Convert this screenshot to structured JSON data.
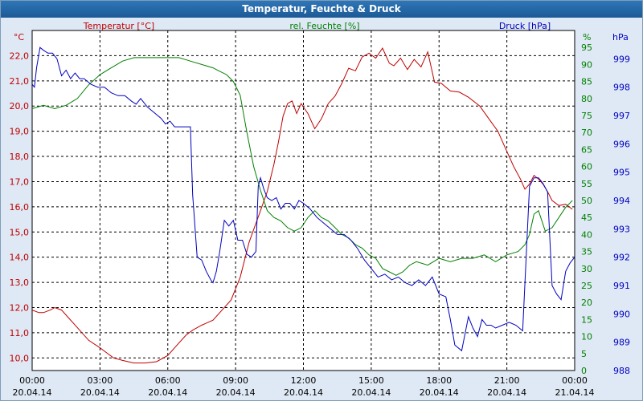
{
  "window": {
    "title": "Temperatur, Feuchte & Druck"
  },
  "colors": {
    "temperature": "#c00000",
    "humidity": "#008000",
    "pressure": "#0000c0",
    "grid": "#000000",
    "plot_bg": "#ffffff"
  },
  "chart_data": {
    "type": "line",
    "title": "Temperatur, Feuchte & Druck",
    "grid": true,
    "x_ticks": [
      {
        "time": "00:00",
        "date": "20.04.14"
      },
      {
        "time": "03:00",
        "date": "20.04.14"
      },
      {
        "time": "06:00",
        "date": "20.04.14"
      },
      {
        "time": "09:00",
        "date": "20.04.14"
      },
      {
        "time": "12:00",
        "date": "20.04.14"
      },
      {
        "time": "15:00",
        "date": "20.04.14"
      },
      {
        "time": "18:00",
        "date": "20.04.14"
      },
      {
        "time": "21:00",
        "date": "20.04.14"
      },
      {
        "time": "00:00",
        "date": "21.04.14"
      }
    ],
    "x_unit_hours": [
      0,
      24
    ],
    "axes": {
      "temperature": {
        "label": "Temperatur [°C]",
        "unit": "°C",
        "range": [
          9.5,
          23.0
        ],
        "ticks": [
          "10,0",
          "11,0",
          "12,0",
          "13,0",
          "14,0",
          "15,0",
          "16,0",
          "17,0",
          "18,0",
          "19,0",
          "20,0",
          "21,0",
          "22,0"
        ],
        "tick_values": [
          10,
          11,
          12,
          13,
          14,
          15,
          16,
          17,
          18,
          19,
          20,
          21,
          22
        ]
      },
      "humidity": {
        "label": "rel. Feuchte [%]",
        "unit": "%",
        "range": [
          0,
          100
        ],
        "ticks": [
          "0",
          "5",
          "10",
          "15",
          "20",
          "25",
          "30",
          "35",
          "40",
          "45",
          "50",
          "55",
          "60",
          "65",
          "70",
          "75",
          "80",
          "85",
          "90",
          "95"
        ],
        "tick_values": [
          0,
          5,
          10,
          15,
          20,
          25,
          30,
          35,
          40,
          45,
          50,
          55,
          60,
          65,
          70,
          75,
          80,
          85,
          90,
          95
        ]
      },
      "pressure": {
        "label": "Druck [hPa]",
        "unit": "hPa",
        "range": [
          988,
          1000
        ],
        "ticks": [
          "988",
          "989",
          "990",
          "991",
          "992",
          "993",
          "994",
          "995",
          "996",
          "997",
          "998",
          "999"
        ],
        "tick_values": [
          988,
          989,
          990,
          991,
          992,
          993,
          994,
          995,
          996,
          997,
          998,
          999
        ]
      }
    },
    "series": [
      {
        "name": "Temperatur [°C]",
        "axis": "temperature",
        "x": [
          0,
          0.3,
          0.5,
          0.8,
          1.0,
          1.3,
          1.6,
          2.0,
          2.5,
          3.0,
          3.3,
          3.6,
          4.0,
          4.5,
          5.0,
          5.5,
          6.0,
          6.4,
          6.8,
          7.1,
          7.5,
          8.0,
          8.4,
          8.8,
          9.2,
          9.6,
          10.0,
          10.4,
          10.7,
          10.9,
          11.1,
          11.3,
          11.5,
          11.7,
          11.9,
          12.2,
          12.5,
          12.8,
          13.1,
          13.4,
          13.7,
          14.0,
          14.3,
          14.6,
          14.9,
          15.2,
          15.5,
          15.8,
          16.0,
          16.3,
          16.6,
          16.9,
          17.2,
          17.5,
          17.8,
          18.1,
          18.5,
          18.9,
          19.3,
          19.8,
          20.2,
          20.6,
          21.0,
          21.3,
          21.6,
          21.8,
          22.0,
          22.2,
          22.4,
          22.6,
          22.8,
          23.0,
          23.3,
          23.6,
          23.9
        ],
        "values": [
          11.9,
          11.8,
          11.8,
          11.9,
          12.0,
          11.9,
          11.6,
          11.2,
          10.7,
          10.4,
          10.2,
          10.0,
          9.9,
          9.8,
          9.8,
          9.85,
          10.1,
          10.5,
          10.9,
          11.1,
          11.3,
          11.5,
          11.9,
          12.3,
          13.2,
          14.6,
          15.6,
          16.6,
          17.7,
          18.6,
          19.6,
          20.1,
          20.2,
          19.7,
          20.1,
          19.7,
          19.1,
          19.5,
          20.1,
          20.4,
          20.9,
          21.5,
          21.4,
          21.95,
          22.1,
          21.9,
          22.3,
          21.7,
          21.6,
          21.9,
          21.45,
          21.85,
          21.55,
          22.15,
          20.95,
          20.9,
          20.6,
          20.55,
          20.35,
          20.0,
          19.5,
          19.0,
          18.2,
          17.6,
          17.1,
          16.7,
          16.9,
          17.25,
          17.1,
          16.9,
          16.6,
          16.25,
          16.05,
          16.1,
          15.9
        ]
      },
      {
        "name": "rel. Feuchte [%]",
        "axis": "humidity",
        "x": [
          0,
          0.5,
          1.0,
          1.5,
          2.0,
          2.5,
          3.0,
          3.5,
          4.0,
          4.5,
          5.0,
          5.5,
          6.0,
          6.5,
          7.0,
          7.5,
          8.0,
          8.3,
          8.6,
          8.9,
          9.2,
          9.5,
          9.8,
          10.1,
          10.4,
          10.7,
          11.0,
          11.3,
          11.6,
          11.9,
          12.2,
          12.5,
          12.8,
          13.1,
          13.4,
          13.7,
          14.0,
          14.3,
          14.6,
          14.9,
          15.2,
          15.5,
          15.8,
          16.1,
          16.4,
          16.7,
          17.0,
          17.5,
          18.0,
          18.5,
          19.0,
          19.5,
          20.0,
          20.5,
          21.0,
          21.5,
          21.8,
          22.0,
          22.2,
          22.4,
          22.7,
          23.0,
          23.3,
          23.6,
          23.9
        ],
        "values": [
          77,
          78,
          77,
          78,
          80,
          84,
          87,
          89,
          91,
          92,
          92,
          92,
          92,
          92,
          91,
          90,
          89,
          88,
          87,
          85,
          81,
          70,
          60,
          53,
          47,
          45,
          44,
          42,
          41,
          42,
          45,
          47,
          45,
          44,
          42,
          40,
          39,
          37,
          36,
          34,
          33,
          30,
          29,
          28,
          29,
          31,
          32,
          31,
          33,
          32,
          33,
          33,
          34,
          32,
          34,
          35,
          37,
          40,
          46,
          47,
          41,
          42,
          45,
          48,
          50
        ]
      },
      {
        "name": "Druck [hPa]",
        "axis": "pressure",
        "x": [
          0,
          0.1,
          0.2,
          0.35,
          0.5,
          0.7,
          0.9,
          1.1,
          1.3,
          1.5,
          1.7,
          1.9,
          2.1,
          2.3,
          2.6,
          2.9,
          3.2,
          3.5,
          3.8,
          4.1,
          4.4,
          4.6,
          4.8,
          5.1,
          5.4,
          5.7,
          5.9,
          6.1,
          6.3,
          6.5,
          6.7,
          6.9,
          7.0,
          7.1,
          7.3,
          7.5,
          7.7,
          7.9,
          8.0,
          8.15,
          8.3,
          8.5,
          8.7,
          8.9,
          9.1,
          9.3,
          9.5,
          9.7,
          9.9,
          10.0,
          10.1,
          10.25,
          10.4,
          10.6,
          10.8,
          11.0,
          11.2,
          11.4,
          11.6,
          11.8,
          12.0,
          12.3,
          12.6,
          12.9,
          13.2,
          13.5,
          13.8,
          14.1,
          14.4,
          14.7,
          15.0,
          15.3,
          15.6,
          15.9,
          16.2,
          16.5,
          16.8,
          17.1,
          17.4,
          17.7,
          18.0,
          18.3,
          18.5,
          18.7,
          19.0,
          19.3,
          19.5,
          19.7,
          19.9,
          20.1,
          20.3,
          20.5,
          20.8,
          21.1,
          21.4,
          21.7,
          22.0,
          22.2,
          22.4,
          22.6,
          22.8,
          23.0,
          23.2,
          23.4,
          23.6,
          23.8,
          24.0
        ],
        "values": [
          998.1,
          998.0,
          998.7,
          999.4,
          999.3,
          999.2,
          999.2,
          999.0,
          998.4,
          998.6,
          998.3,
          998.5,
          998.3,
          998.3,
          998.1,
          998.0,
          998.0,
          997.8,
          997.7,
          997.7,
          997.5,
          997.4,
          997.6,
          997.3,
          997.1,
          996.9,
          996.7,
          996.8,
          996.6,
          996.6,
          996.6,
          996.6,
          996.6,
          994.2,
          992.0,
          991.9,
          991.5,
          991.2,
          991.1,
          991.5,
          992.2,
          993.3,
          993.1,
          993.3,
          992.6,
          992.6,
          992.1,
          992.0,
          992.2,
          994.5,
          994.8,
          994.4,
          994.1,
          994.0,
          994.1,
          993.7,
          993.9,
          993.9,
          993.7,
          994.0,
          993.9,
          993.7,
          993.4,
          993.2,
          993.0,
          992.8,
          992.8,
          992.6,
          992.3,
          991.9,
          991.6,
          991.3,
          991.4,
          991.2,
          991.3,
          991.1,
          991.0,
          991.2,
          991.0,
          991.3,
          990.7,
          990.6,
          989.8,
          988.9,
          988.7,
          989.9,
          989.5,
          989.2,
          989.8,
          989.6,
          989.6,
          989.5,
          989.6,
          989.7,
          989.6,
          989.4,
          994.5,
          994.8,
          994.8,
          994.6,
          994.3,
          991.0,
          990.7,
          990.5,
          991.5,
          991.8,
          992.0
        ]
      }
    ]
  }
}
